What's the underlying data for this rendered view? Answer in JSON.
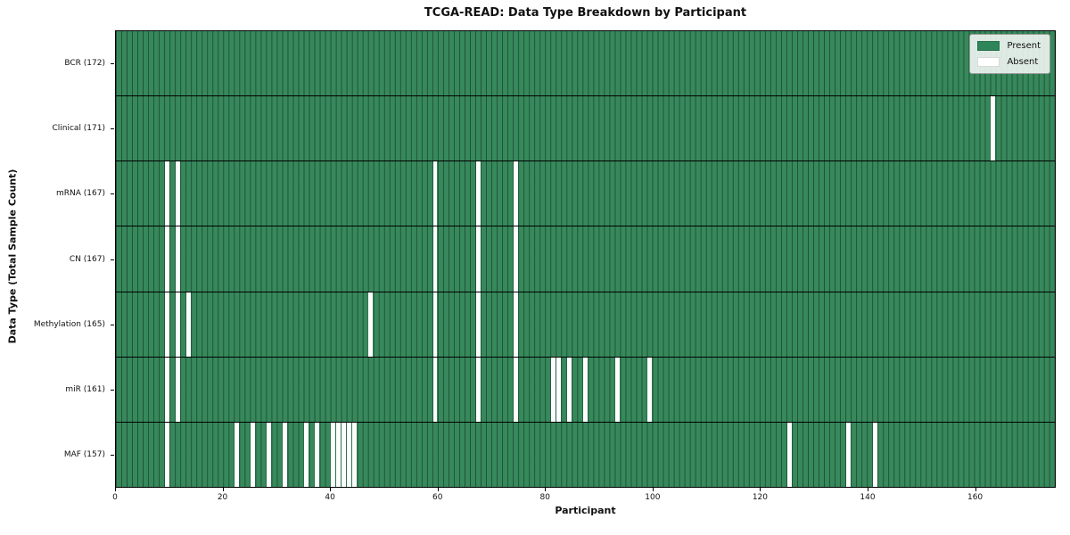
{
  "title": "TCGA-READ: Data Type Breakdown by Participant",
  "x_axis": {
    "label": "Participant",
    "ticks": [
      0,
      20,
      40,
      60,
      80,
      100,
      120,
      140,
      160
    ],
    "max": 175
  },
  "y_axis": {
    "label": "Data Type (Total Sample Count)"
  },
  "legend": {
    "present_label": "Present",
    "absent_label": "Absent"
  },
  "colors": {
    "present": "#37895C",
    "absent": "#fdfdfd",
    "gridline": "rgba(8,34,22,0.55)",
    "frame": "#000000"
  },
  "chart_data": {
    "type": "heatmap",
    "title": "TCGA-READ: Data Type Breakdown by Participant",
    "xlabel": "Participant",
    "ylabel": "Data Type (Total Sample Count)",
    "n_participants": 172,
    "x_axis_range": [
      0,
      175
    ],
    "x_ticks": [
      0,
      20,
      40,
      60,
      80,
      100,
      120,
      140,
      160
    ],
    "legend": [
      "Present",
      "Absent"
    ],
    "legend_position": "upper right",
    "cell_states": {
      "present": "green",
      "absent": "white"
    },
    "rows": [
      {
        "label": "BCR (172)",
        "data_type": "BCR",
        "total_sample_count": 172,
        "absent_participants": []
      },
      {
        "label": "Clinical (171)",
        "data_type": "Clinical",
        "total_sample_count": 171,
        "absent_participants": [
          163
        ]
      },
      {
        "label": "mRNA (167)",
        "data_type": "mRNA",
        "total_sample_count": 167,
        "absent_participants": [
          9,
          11,
          59,
          67,
          74
        ]
      },
      {
        "label": "CN (167)",
        "data_type": "CN",
        "total_sample_count": 167,
        "absent_participants": [
          9,
          11,
          59,
          67,
          74
        ]
      },
      {
        "label": "Methylation (165)",
        "data_type": "Methylation",
        "total_sample_count": 165,
        "absent_participants": [
          9,
          11,
          13,
          47,
          59,
          67,
          74
        ]
      },
      {
        "label": "miR (161)",
        "data_type": "miR",
        "total_sample_count": 161,
        "absent_participants": [
          9,
          11,
          59,
          67,
          74,
          81,
          82,
          84,
          87,
          93,
          99
        ]
      },
      {
        "label": "MAF (157)",
        "data_type": "MAF",
        "total_sample_count": 157,
        "absent_participants": [
          9,
          22,
          25,
          28,
          31,
          35,
          37,
          40,
          41,
          42,
          43,
          44,
          125,
          136,
          141
        ]
      }
    ]
  }
}
